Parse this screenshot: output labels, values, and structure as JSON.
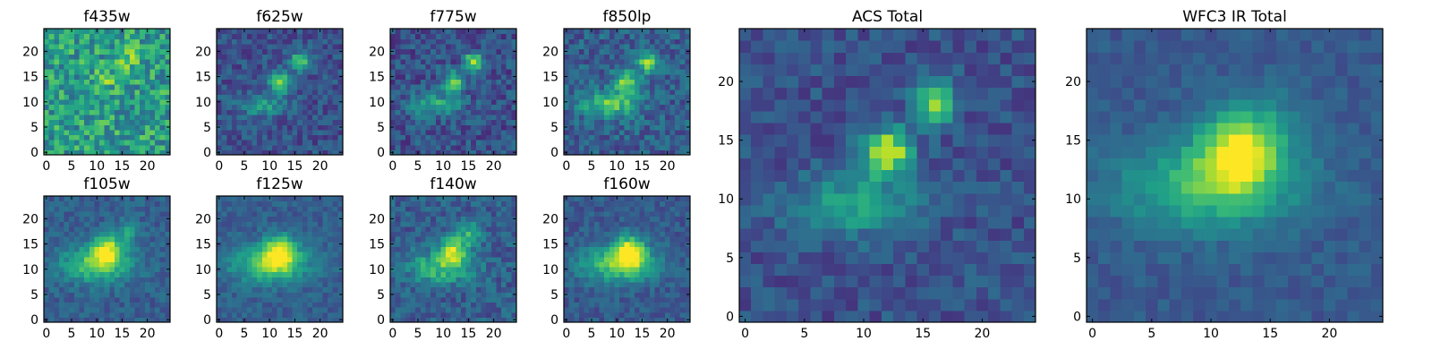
{
  "chart_data": [
    {
      "type": "heatmap",
      "title": "f435w",
      "xticks": [
        "0",
        "5",
        "10",
        "15",
        "20"
      ],
      "yticks": [
        "0",
        "5",
        "10",
        "15",
        "20"
      ],
      "xlim": [
        0,
        25
      ],
      "ylim": [
        0,
        25
      ],
      "colormap": "viridis",
      "sources": [
        {
          "x": 16.5,
          "y": 18.8,
          "amp": 0.22,
          "sx": 1.6,
          "sy": 1.6
        },
        {
          "x": 12.5,
          "y": 15,
          "amp": 0.15,
          "sx": 1.6,
          "sy": 1.6
        }
      ],
      "background": 0.55,
      "noise": 0.22
    },
    {
      "type": "heatmap",
      "title": "f625w",
      "xticks": [
        "0",
        "5",
        "10",
        "15",
        "20"
      ],
      "yticks": [
        "0",
        "5",
        "10",
        "15",
        "20"
      ],
      "xlim": [
        0,
        25
      ],
      "ylim": [
        0,
        25
      ],
      "colormap": "viridis",
      "sources": [
        {
          "x": 16.5,
          "y": 18.5,
          "amp": 0.55,
          "sx": 1.3,
          "sy": 1.3
        },
        {
          "x": 12.5,
          "y": 14.5,
          "amp": 0.65,
          "sx": 1.4,
          "sy": 1.4
        },
        {
          "x": 9,
          "y": 10,
          "amp": 0.3,
          "sx": 3.5,
          "sy": 1.6
        }
      ],
      "background": 0.25,
      "noise": 0.12
    },
    {
      "type": "heatmap",
      "title": "f775w",
      "xticks": [
        "0",
        "5",
        "10",
        "15",
        "20"
      ],
      "yticks": [
        "0",
        "5",
        "10",
        "15",
        "20"
      ],
      "xlim": [
        0,
        25
      ],
      "ylim": [
        0,
        25
      ],
      "colormap": "viridis",
      "sources": [
        {
          "x": 16.5,
          "y": 18.5,
          "amp": 0.6,
          "sx": 1.3,
          "sy": 1.3
        },
        {
          "x": 12.5,
          "y": 14.5,
          "amp": 0.6,
          "sx": 1.4,
          "sy": 1.4
        },
        {
          "x": 9,
          "y": 10,
          "amp": 0.35,
          "sx": 3.5,
          "sy": 1.6
        }
      ],
      "background": 0.25,
      "noise": 0.14
    },
    {
      "type": "heatmap",
      "title": "f850lp",
      "xticks": [
        "0",
        "5",
        "10",
        "15",
        "20"
      ],
      "yticks": [
        "0",
        "5",
        "10",
        "15",
        "20"
      ],
      "xlim": [
        0,
        25
      ],
      "ylim": [
        0,
        25
      ],
      "colormap": "viridis",
      "sources": [
        {
          "x": 16.5,
          "y": 18.5,
          "amp": 0.5,
          "sx": 1.4,
          "sy": 1.4
        },
        {
          "x": 12.5,
          "y": 14.5,
          "amp": 0.5,
          "sx": 1.8,
          "sy": 1.8
        },
        {
          "x": 9,
          "y": 10,
          "amp": 0.45,
          "sx": 4,
          "sy": 1.8
        }
      ],
      "background": 0.3,
      "noise": 0.14
    },
    {
      "type": "heatmap",
      "title": "f105w",
      "xticks": [
        "0",
        "5",
        "10",
        "15",
        "20"
      ],
      "yticks": [
        "0",
        "5",
        "10",
        "15",
        "20"
      ],
      "xlim": [
        0,
        25
      ],
      "ylim": [
        0,
        25
      ],
      "colormap": "viridis",
      "sources": [
        {
          "x": 12.5,
          "y": 14.5,
          "amp": 0.55,
          "sx": 2,
          "sy": 2
        },
        {
          "x": 16.5,
          "y": 18,
          "amp": 0.25,
          "sx": 1.6,
          "sy": 1.6
        },
        {
          "x": 10.5,
          "y": 11.5,
          "amp": 0.45,
          "sx": 5,
          "sy": 2.5
        }
      ],
      "background": 0.3,
      "noise": 0.09
    },
    {
      "type": "heatmap",
      "title": "f125w",
      "xticks": [
        "0",
        "5",
        "10",
        "15",
        "20"
      ],
      "yticks": [
        "0",
        "5",
        "10",
        "15",
        "20"
      ],
      "xlim": [
        0,
        25
      ],
      "ylim": [
        0,
        25
      ],
      "colormap": "viridis",
      "sources": [
        {
          "x": 12.5,
          "y": 14,
          "amp": 0.6,
          "sx": 2.2,
          "sy": 2.2
        },
        {
          "x": 10.5,
          "y": 11.5,
          "amp": 0.45,
          "sx": 5.5,
          "sy": 2.5
        }
      ],
      "background": 0.3,
      "noise": 0.08
    },
    {
      "type": "heatmap",
      "title": "f140w",
      "xticks": [
        "0",
        "5",
        "10",
        "15",
        "20"
      ],
      "yticks": [
        "0",
        "5",
        "10",
        "15",
        "20"
      ],
      "xlim": [
        0,
        25
      ],
      "ylim": [
        0,
        25
      ],
      "colormap": "viridis",
      "sources": [
        {
          "x": 12.5,
          "y": 14.5,
          "amp": 0.55,
          "sx": 1.8,
          "sy": 1.8
        },
        {
          "x": 16,
          "y": 17.5,
          "amp": 0.3,
          "sx": 1.6,
          "sy": 1.6
        },
        {
          "x": 10,
          "y": 11,
          "amp": 0.4,
          "sx": 4.5,
          "sy": 2.2
        }
      ],
      "background": 0.3,
      "noise": 0.12
    },
    {
      "type": "heatmap",
      "title": "f160w",
      "xticks": [
        "0",
        "5",
        "10",
        "15",
        "20"
      ],
      "yticks": [
        "0",
        "5",
        "10",
        "15",
        "20"
      ],
      "xlim": [
        0,
        25
      ],
      "ylim": [
        0,
        25
      ],
      "colormap": "viridis",
      "sources": [
        {
          "x": 13,
          "y": 14,
          "amp": 0.65,
          "sx": 2.2,
          "sy": 2.2
        },
        {
          "x": 10.5,
          "y": 11.5,
          "amp": 0.45,
          "sx": 5.5,
          "sy": 2.5
        }
      ],
      "background": 0.28,
      "noise": 0.09
    },
    {
      "type": "heatmap",
      "title": "ACS Total",
      "xticks": [
        "0",
        "5",
        "10",
        "15",
        "20"
      ],
      "yticks": [
        "0",
        "5",
        "10",
        "15",
        "20"
      ],
      "xlim": [
        0,
        25
      ],
      "ylim": [
        0,
        25
      ],
      "colormap": "viridis",
      "sources": [
        {
          "x": 16.5,
          "y": 18.8,
          "amp": 0.62,
          "sx": 1.2,
          "sy": 1.2
        },
        {
          "x": 12.5,
          "y": 14.5,
          "amp": 0.7,
          "sx": 1.4,
          "sy": 1.4
        },
        {
          "x": 9.5,
          "y": 10,
          "amp": 0.32,
          "sx": 3.8,
          "sy": 1.8
        }
      ],
      "background": 0.25,
      "noise": 0.1
    },
    {
      "type": "heatmap",
      "title": "WFC3 IR Total",
      "xticks": [
        "0",
        "5",
        "10",
        "15",
        "20"
      ],
      "yticks": [
        "0",
        "5",
        "10",
        "15",
        "20"
      ],
      "xlim": [
        0,
        25
      ],
      "ylim": [
        0,
        25
      ],
      "colormap": "viridis",
      "sources": [
        {
          "x": 12.5,
          "y": 14.5,
          "amp": 0.55,
          "sx": 2.2,
          "sy": 2.2
        },
        {
          "x": 15,
          "y": 16.5,
          "amp": 0.2,
          "sx": 2.5,
          "sy": 2.5
        },
        {
          "x": 10.5,
          "y": 11.5,
          "amp": 0.4,
          "sx": 5.5,
          "sy": 2.6
        }
      ],
      "background": 0.28,
      "noise": 0.06
    }
  ]
}
